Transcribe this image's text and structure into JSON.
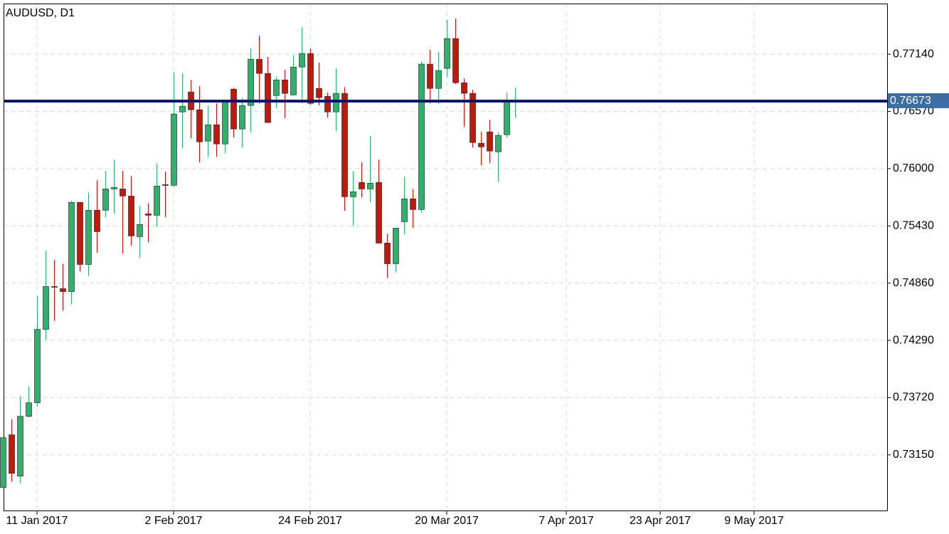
{
  "chart_data": {
    "type": "candlestick",
    "title": "AUDUSD, D1",
    "x": [
      "2017-01-05",
      "2017-01-06",
      "2017-01-09",
      "2017-01-10",
      "2017-01-11",
      "2017-01-12",
      "2017-01-13",
      "2017-01-16",
      "2017-01-17",
      "2017-01-18",
      "2017-01-19",
      "2017-01-20",
      "2017-01-23",
      "2017-01-24",
      "2017-01-25",
      "2017-01-26",
      "2017-01-27",
      "2017-01-30",
      "2017-01-31",
      "2017-02-01",
      "2017-02-02",
      "2017-02-03",
      "2017-02-06",
      "2017-02-07",
      "2017-02-08",
      "2017-02-09",
      "2017-02-10",
      "2017-02-13",
      "2017-02-14",
      "2017-02-15",
      "2017-02-16",
      "2017-02-17",
      "2017-02-20",
      "2017-02-21",
      "2017-02-22",
      "2017-02-23",
      "2017-02-24",
      "2017-02-27",
      "2017-02-28",
      "2017-03-01",
      "2017-03-02",
      "2017-03-03",
      "2017-03-06",
      "2017-03-07",
      "2017-03-08",
      "2017-03-09",
      "2017-03-10",
      "2017-03-13",
      "2017-03-14",
      "2017-03-15",
      "2017-03-16",
      "2017-03-17",
      "2017-03-20",
      "2017-03-21",
      "2017-03-22",
      "2017-03-23",
      "2017-03-24",
      "2017-03-27",
      "2017-03-28",
      "2017-03-29",
      "2017-03-30"
    ],
    "open": [
      0.72824,
      0.7335,
      0.72938,
      0.73534,
      0.73669,
      0.744,
      0.74826,
      0.74805,
      0.74776,
      0.75664,
      0.75046,
      0.75586,
      0.75586,
      0.75798,
      0.75798,
      0.75727,
      0.75323,
      0.7555,
      0.75536,
      0.75841,
      0.75834,
      0.76565,
      0.76764,
      0.76586,
      0.76274,
      0.76437,
      0.76246,
      0.76792,
      0.76395,
      0.76629,
      0.7709,
      0.76948,
      0.76728,
      0.76884,
      0.76735,
      0.77012,
      0.77147,
      0.76799,
      0.76721,
      0.76565,
      0.7675,
      0.7572,
      0.75862,
      0.75798,
      0.75862,
      0.75259,
      0.75053,
      0.75472,
      0.75699,
      0.75593,
      0.77041,
      0.76799,
      0.76998,
      0.77296,
      0.76856,
      0.7675,
      0.76253,
      0.76366,
      0.76168,
      0.76338,
      0.76672
    ],
    "high": [
      0.73321,
      0.73506,
      0.73733,
      0.73832,
      0.74734,
      0.75181,
      0.75089,
      0.75053,
      0.75678,
      0.75664,
      0.75763,
      0.75884,
      0.75976,
      0.76089,
      0.75976,
      0.75926,
      0.75628,
      0.75657,
      0.76054,
      0.75969,
      0.76963,
      0.76948,
      0.76884,
      0.76821,
      0.76629,
      0.7665,
      0.76679,
      0.76806,
      0.767,
      0.77197,
      0.77325,
      0.77112,
      0.76913,
      0.76984,
      0.77133,
      0.7741,
      0.77197,
      0.77055,
      0.76757,
      0.76998,
      0.76813,
      0.75976,
      0.76061,
      0.76324,
      0.76089,
      0.75351,
      0.75408,
      0.75919,
      0.75798,
      0.77069,
      0.77183,
      0.77161,
      0.77481,
      0.77495,
      0.76899,
      0.76785,
      0.76366,
      0.76487,
      0.76359,
      0.76757,
      0.76806
    ],
    "low": [
      0.72824,
      0.72881,
      0.72867,
      0.7352,
      0.73634,
      0.74294,
      0.74485,
      0.74585,
      0.74649,
      0.74975,
      0.74933,
      0.7516,
      0.75515,
      0.7555,
      0.75153,
      0.75231,
      0.7511,
      0.75266,
      0.75422,
      0.75515,
      0.7582,
      0.76203,
      0.76302,
      0.76061,
      0.76118,
      0.76118,
      0.76153,
      0.7631,
      0.7621,
      0.76359,
      0.7665,
      0.76459,
      0.76601,
      0.76501,
      0.76728,
      0.7665,
      0.76636,
      0.76629,
      0.76508,
      0.76373,
      0.75578,
      0.75429,
      0.75713,
      0.75664,
      0.75252,
      0.74911,
      0.74968,
      0.75344,
      0.75408,
      0.75564,
      0.7665,
      0.76643,
      0.76913,
      0.76842,
      0.76416,
      0.7621,
      0.76033,
      0.76054,
      0.75869,
      0.7631,
      0.76508
    ],
    "close": [
      0.73321,
      0.72966,
      0.73534,
      0.73669,
      0.744,
      0.74826,
      0.74819,
      0.74776,
      0.75664,
      0.75046,
      0.75586,
      0.75373,
      0.75798,
      0.75813,
      0.75727,
      0.7533,
      0.75444,
      0.75536,
      0.75827,
      0.75834,
      0.76544,
      0.76622,
      0.76586,
      0.76267,
      0.76437,
      0.76246,
      0.76664,
      0.76395,
      0.76629,
      0.7709,
      0.76948,
      0.76459,
      0.76884,
      0.7675,
      0.77012,
      0.77147,
      0.7665,
      0.76707,
      0.76565,
      0.7675,
      0.7572,
      0.7577,
      0.75798,
      0.75855,
      0.75259,
      0.75053,
      0.75408,
      0.75699,
      0.75593,
      0.77041,
      0.76799,
      0.76977,
      0.77296,
      0.76856,
      0.7675,
      0.7626,
      0.76217,
      0.76175,
      0.76331,
      0.76672,
      0.76673
    ],
    "up_color": "#2fb06e",
    "down_color": "#c0180c",
    "price_line": 0.76673,
    "price_line_color": "#0b1766",
    "price_label_color": "#3a6ea5",
    "ylim": [
      0.72596,
      0.77644
    ],
    "yticks": [
      {
        "value": 0.7315,
        "label": "0.73150"
      },
      {
        "value": 0.7372,
        "label": "0.73720"
      },
      {
        "value": 0.7429,
        "label": "0.74290"
      },
      {
        "value": 0.7486,
        "label": "0.74860"
      },
      {
        "value": 0.7543,
        "label": "0.75430"
      },
      {
        "value": 0.76,
        "label": "0.76000"
      },
      {
        "value": 0.7657,
        "label": "0.76570"
      },
      {
        "value": 0.7714,
        "label": "0.77140"
      }
    ],
    "xticks": [
      {
        "value": "2017-01-11",
        "label": "11 Jan 2017"
      },
      {
        "value": "2017-02-02",
        "label": "2 Feb 2017"
      },
      {
        "value": "2017-02-24",
        "label": "24 Feb 2017"
      },
      {
        "value": "2017-03-20",
        "label": "20 Mar 2017"
      },
      {
        "value": "2017-04-07",
        "label": "7 Apr 2017"
      },
      {
        "value": "2017-04-23",
        "label": "23 Apr 2017"
      },
      {
        "value": "2017-05-09",
        "label": "9 May 2017"
      }
    ],
    "grid": true
  }
}
